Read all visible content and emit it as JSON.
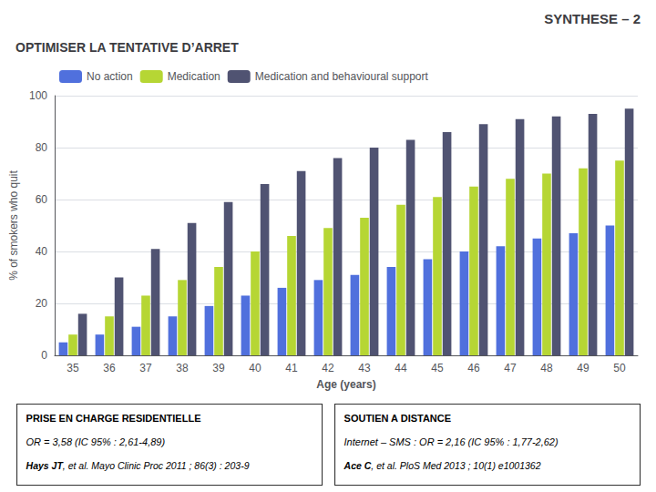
{
  "chart_data": {
    "type": "bar",
    "title": "SYNTHESE – 2",
    "subtitle": "OPTIMISER LA TENTATIVE D’ARRET",
    "categories": [
      "35",
      "36",
      "37",
      "38",
      "39",
      "40",
      "41",
      "42",
      "43",
      "44",
      "45",
      "46",
      "47",
      "48",
      "49",
      "50"
    ],
    "series": [
      {
        "name": "No action",
        "values": [
          5,
          8,
          11,
          15,
          19,
          23,
          26,
          29,
          31,
          34,
          37,
          40,
          42,
          45,
          47,
          50
        ]
      },
      {
        "name": "Medication",
        "values": [
          8,
          15,
          23,
          29,
          34,
          40,
          46,
          49,
          53,
          58,
          61,
          65,
          68,
          70,
          72,
          75
        ]
      },
      {
        "name": "Medication and behavioural support",
        "values": [
          16,
          30,
          41,
          51,
          59,
          66,
          71,
          76,
          80,
          83,
          86,
          89,
          91,
          92,
          93,
          95
        ]
      }
    ],
    "xlabel": "Age (years)",
    "ylabel": "% of smokers who quit",
    "ylim": [
      0,
      100
    ],
    "yticks": [
      0,
      20,
      40,
      60,
      80,
      100
    ],
    "grid": true,
    "legend": "upper left",
    "annotations": [
      [
        "PRISE EN CHARGE RESIDENTIELLE",
        "OR = 3,58 (IC 95% : 2,61-4,89)",
        "Hays JT",
        ", et al. Mayo Clinic Proc 2011 ; 86(3) : 203-9"
      ],
      [
        "SOUTIEN A DISTANCE",
        "Internet – SMS : OR = 2,16 (IC 95% : 1,77-2,62)",
        "Ace C",
        ", et al. PloS Med 2013 ; 10(1) e1001362"
      ]
    ]
  }
}
